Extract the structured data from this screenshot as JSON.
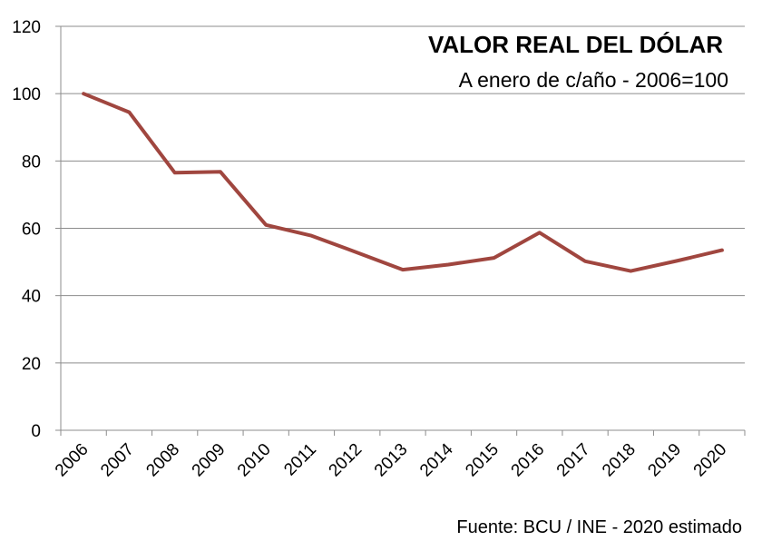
{
  "chart_data": {
    "type": "line",
    "title": "VALOR REAL DEL DÓLAR",
    "subtitle": "A enero de c/año - 2006=100",
    "source": "Fuente: BCU / INE - 2020 estimado",
    "categories": [
      "2006",
      "2007",
      "2008",
      "2009",
      "2010",
      "2011",
      "2012",
      "2013",
      "2014",
      "2015",
      "2016",
      "2017",
      "2018",
      "2019",
      "2020"
    ],
    "values": [
      100,
      94.5,
      76.5,
      76.8,
      61,
      57.8,
      52.8,
      47.7,
      49.2,
      51.2,
      58.7,
      50.2,
      47.3,
      50.3,
      53.5
    ],
    "ylim": [
      0,
      120
    ],
    "yticks": [
      0,
      20,
      40,
      60,
      80,
      100,
      120
    ],
    "grid": true,
    "line_color": "#a0463f"
  }
}
